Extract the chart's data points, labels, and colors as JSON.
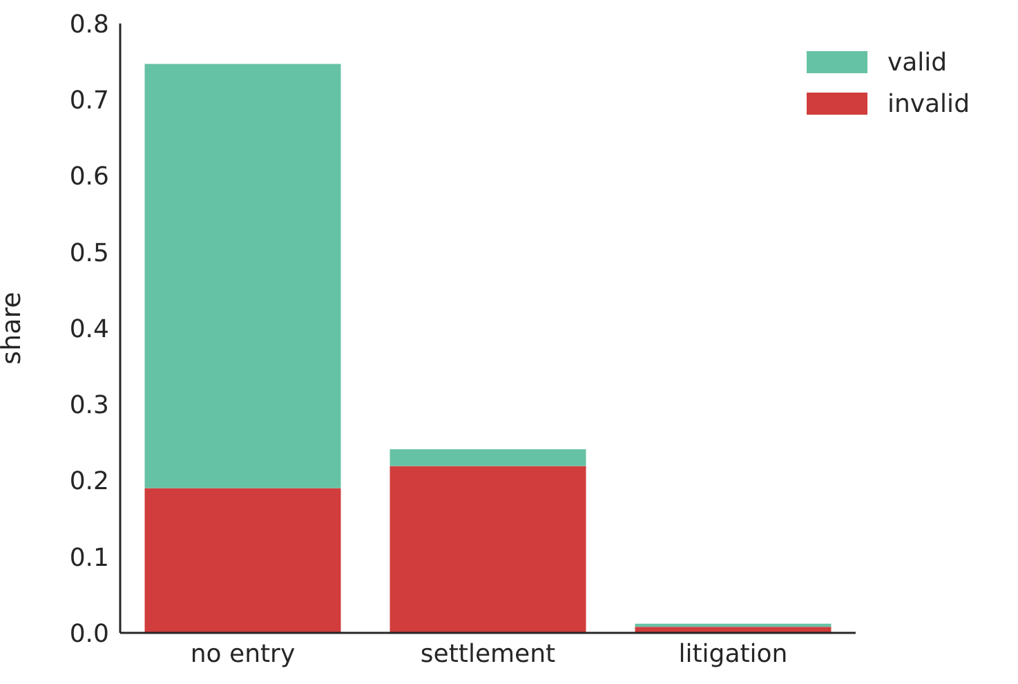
{
  "chart_data": {
    "type": "bar",
    "stacked": true,
    "ylabel": "share",
    "categories": [
      "no entry",
      "settlement",
      "litigation"
    ],
    "series": [
      {
        "name": "invalid",
        "color": "#d03d3c",
        "values": [
          0.19,
          0.219,
          0.008
        ]
      },
      {
        "name": "valid",
        "color": "#66c2a5",
        "values": [
          0.557,
          0.022,
          0.004
        ]
      }
    ],
    "ylim": [
      0,
      0.8
    ],
    "yticks": [
      {
        "value": 0,
        "label": "0.0"
      },
      {
        "value": 0.1,
        "label": "0.1"
      },
      {
        "value": 0.2,
        "label": "0.2"
      },
      {
        "value": 0.3,
        "label": "0.3"
      },
      {
        "value": 0.4,
        "label": "0.4"
      },
      {
        "value": 0.5,
        "label": "0.5"
      },
      {
        "value": 0.6,
        "label": "0.6"
      },
      {
        "value": 0.7,
        "label": "0.7"
      },
      {
        "value": 0.8,
        "label": "0.8"
      }
    ],
    "grid": false,
    "legend": "top right"
  }
}
